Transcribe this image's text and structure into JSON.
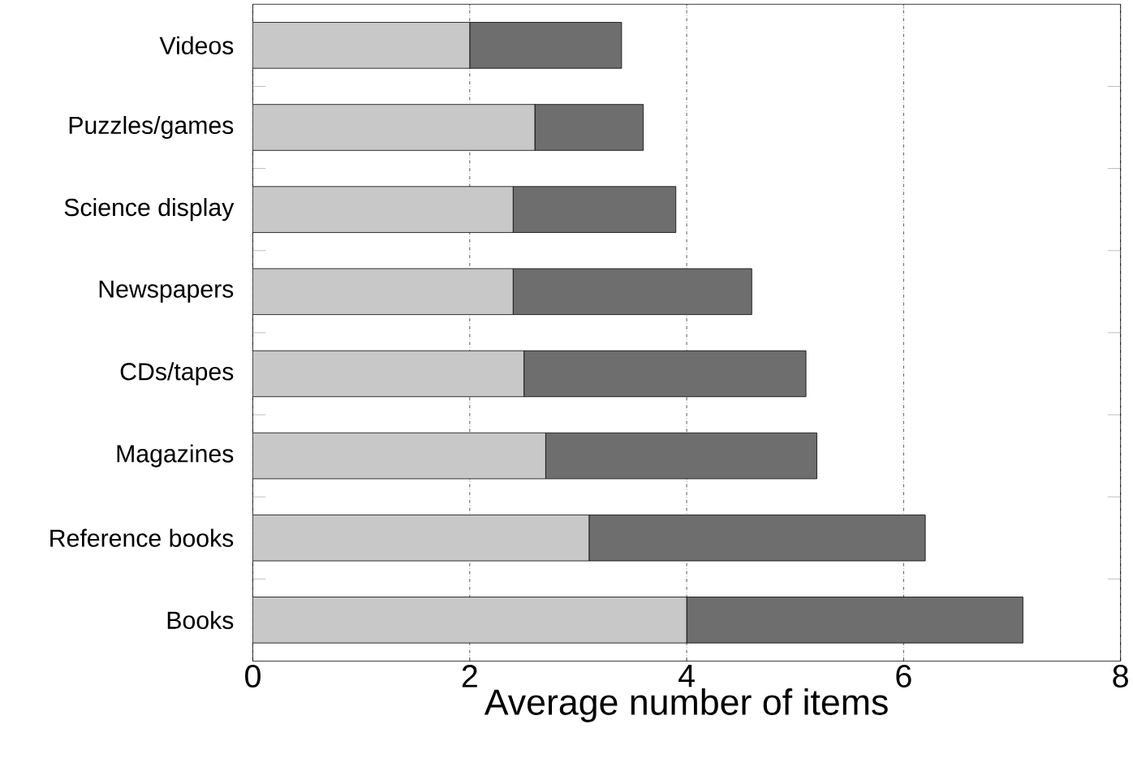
{
  "chart_data": {
    "type": "bar",
    "orientation": "horizontal",
    "stacked": true,
    "categories": [
      "Videos",
      "Puzzles/games",
      "Science display",
      "Newspapers",
      "CDs/tapes",
      "Magazines",
      "Reference books",
      "Books"
    ],
    "series": [
      {
        "color": "#c8c8c8",
        "values": [
          2.0,
          2.6,
          2.4,
          2.4,
          2.5,
          2.7,
          3.1,
          4.0
        ]
      },
      {
        "color": "#6e6e6e",
        "values": [
          1.4,
          1.0,
          1.5,
          2.2,
          2.6,
          2.5,
          3.1,
          3.1
        ]
      }
    ],
    "xlabel": "Average number of items",
    "xlim": [
      0,
      8
    ],
    "xticks": [
      0,
      2,
      4,
      6,
      8
    ],
    "grid": "x"
  }
}
